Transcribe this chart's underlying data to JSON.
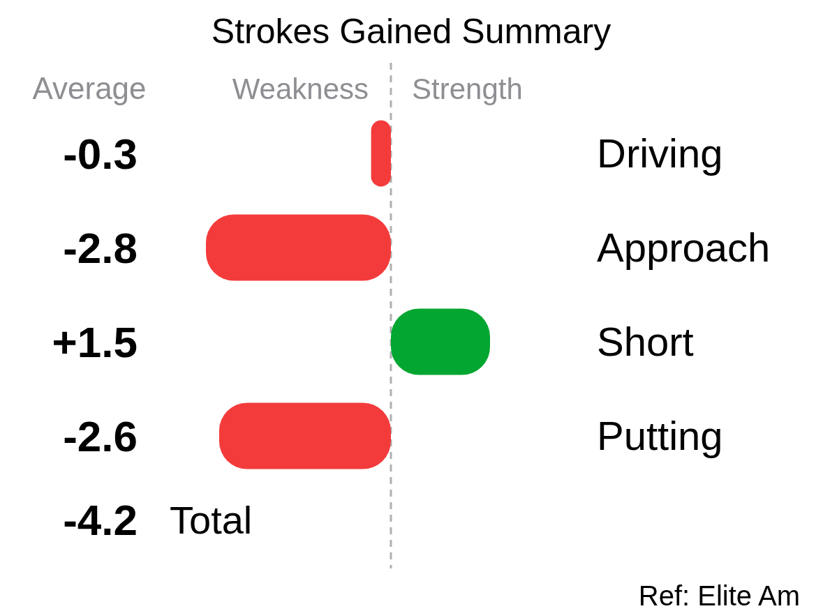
{
  "chart_data": {
    "type": "bar",
    "orientation": "horizontal",
    "title": "Strokes Gained Summary",
    "categories": [
      "Driving",
      "Approach",
      "Short",
      "Putting"
    ],
    "values": [
      -0.3,
      -2.8,
      1.5,
      -2.6
    ],
    "value_labels": [
      "-0.3",
      "-2.8",
      "+1.5",
      "-2.6"
    ],
    "colors": [
      "#f43b3b",
      "#f43b3b",
      "#02a630",
      "#f43b3b"
    ],
    "ref_lines": [
      {
        "axis": "x",
        "value": 0,
        "label": null,
        "color": "#b0b0b0",
        "line_style": "dashed"
      }
    ],
    "annotations": [
      "Average",
      "Weakness",
      "Strength",
      "-4.2",
      "Total",
      "Ref: Elite Am"
    ]
  }
}
